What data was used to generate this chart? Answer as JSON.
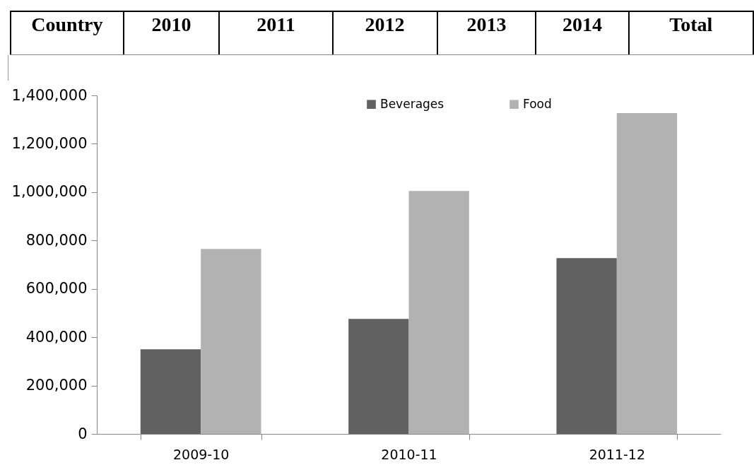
{
  "chart_data": {
    "type": "bar",
    "categories": [
      "2009-10",
      "2010-11",
      "2011-12"
    ],
    "series": [
      {
        "name": "Beverages",
        "color": "#616161",
        "values": [
          350000,
          476000,
          727000
        ]
      },
      {
        "name": "Food",
        "color": "#b2b2b2",
        "values": [
          765000,
          1005000,
          1327000
        ]
      }
    ],
    "ylim": [
      0,
      1400000
    ],
    "yticks": [
      0,
      {
        "value": 200000,
        "label": "200,000"
      },
      {
        "value": 400000,
        "label": "400,000"
      },
      {
        "value": 600000,
        "label": "600,000"
      },
      {
        "value": 800000,
        "label": "800,000"
      },
      {
        "value": 1000000,
        "label": "1,000,000"
      },
      {
        "value": 1200000,
        "label": "1,200,000"
      },
      {
        "value": 1400000,
        "label": "1,400,000"
      }
    ],
    "grid": false,
    "legend": "top",
    "annotations": [
      "Country",
      "2010",
      "2011",
      "2012",
      "2013",
      "2014",
      "Total"
    ]
  }
}
